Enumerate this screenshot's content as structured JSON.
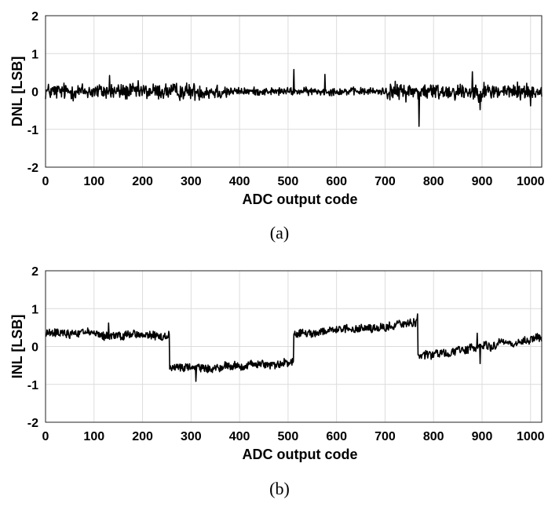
{
  "figure": {
    "captions": [
      "(a)",
      "(b)"
    ]
  },
  "chart_data": [
    {
      "type": "line",
      "panel": "(a)",
      "xlabel": "ADC output code",
      "ylabel": "DNL [LSB]",
      "xlim": [
        0,
        1023
      ],
      "ylim": [
        -2,
        2
      ],
      "xticks": [
        0,
        100,
        200,
        300,
        400,
        500,
        600,
        700,
        800,
        900,
        1000
      ],
      "yticks": [
        -2,
        -1,
        0,
        1,
        2
      ],
      "grid": true,
      "line_color": "#000000",
      "series": [
        {
          "x_range": [
            0,
            1023
          ],
          "noise_amplitude": [
            {
              "from": 0,
              "to": 380,
              "value": 0.22
            },
            {
              "from": 380,
              "to": 700,
              "value": 0.1
            },
            {
              "from": 700,
              "to": 1023,
              "value": 0.22
            }
          ],
          "notable_points": [
            {
              "x": 512,
              "y": 0.58
            },
            {
              "x": 770,
              "y": -0.92
            },
            {
              "x": 132,
              "y": 0.42
            },
            {
              "x": 576,
              "y": 0.45
            },
            {
              "x": 880,
              "y": 0.52
            },
            {
              "x": 896,
              "y": -0.48
            },
            {
              "x": 1000,
              "y": -0.38
            }
          ]
        }
      ]
    },
    {
      "type": "line",
      "panel": "(b)",
      "xlabel": "ADC output code",
      "ylabel": "INL [LSB]",
      "xlim": [
        0,
        1023
      ],
      "ylim": [
        -2,
        2
      ],
      "xticks": [
        0,
        100,
        200,
        300,
        400,
        500,
        600,
        700,
        800,
        900,
        1000
      ],
      "yticks": [
        -2,
        -1,
        0,
        1,
        2
      ],
      "grid": true,
      "line_color": "#000000",
      "series": [
        {
          "x_range": [
            0,
            1023
          ],
          "segments": [
            {
              "from": 0,
              "to": 255,
              "start": 0.38,
              "end": 0.26
            },
            {
              "from": 256,
              "to": 511,
              "start": -0.62,
              "end": -0.45
            },
            {
              "from": 512,
              "to": 767,
              "start": 0.28,
              "end": 0.62
            },
            {
              "from": 768,
              "to": 1023,
              "start": -0.25,
              "end": 0.22
            }
          ],
          "noise_amplitude": 0.1,
          "notable_points": [
            {
              "x": 130,
              "y": 0.62
            },
            {
              "x": 310,
              "y": -0.92
            },
            {
              "x": 767,
              "y": 0.86
            },
            {
              "x": 890,
              "y": 0.35
            },
            {
              "x": 896,
              "y": -0.45
            }
          ]
        }
      ]
    }
  ]
}
